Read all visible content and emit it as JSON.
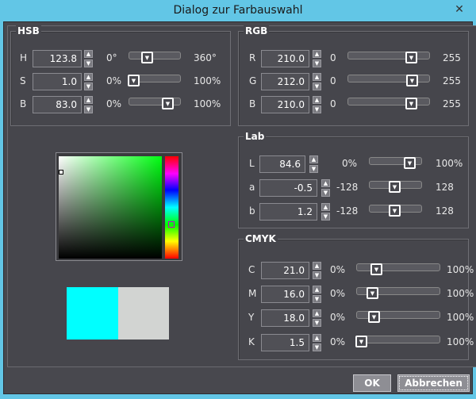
{
  "window": {
    "title": "Dialog zur Farbauswahl",
    "close_icon": "close-icon"
  },
  "hsb": {
    "label": "HSB",
    "rows": [
      {
        "name": "H",
        "value": "123.8",
        "min": "0°",
        "max": "360°",
        "level": 0.344
      },
      {
        "name": "S",
        "value": "1.0",
        "min": "0%",
        "max": "100%",
        "level": 0.01
      },
      {
        "name": "B",
        "value": "83.0",
        "min": "0%",
        "max": "100%",
        "level": 0.83
      }
    ]
  },
  "rgb": {
    "label": "RGB",
    "rows": [
      {
        "name": "R",
        "value": "210.0",
        "min": "0",
        "max": "255",
        "level": 0.82
      },
      {
        "name": "G",
        "value": "212.0",
        "min": "0",
        "max": "255",
        "level": 0.83
      },
      {
        "name": "B",
        "value": "210.0",
        "min": "0",
        "max": "255",
        "level": 0.82
      }
    ]
  },
  "lab": {
    "label": "Lab",
    "rows": [
      {
        "name": "L",
        "value": "84.6",
        "min": "0%",
        "max": "100%",
        "level": 0.846
      },
      {
        "name": "a",
        "value": "-0.5",
        "min": "-128",
        "max": "128",
        "level": 0.5
      },
      {
        "name": "b",
        "value": "1.2",
        "min": "-128",
        "max": "128",
        "level": 0.5
      }
    ]
  },
  "cmyk": {
    "label": "CMYK",
    "rows": [
      {
        "name": "C",
        "value": "21.0",
        "min": "0%",
        "max": "100%",
        "level": 0.21
      },
      {
        "name": "M",
        "value": "16.0",
        "min": "0%",
        "max": "100%",
        "level": 0.16
      },
      {
        "name": "Y",
        "value": "18.0",
        "min": "0%",
        "max": "100%",
        "level": 0.18
      },
      {
        "name": "K",
        "value": "1.5",
        "min": "0%",
        "max": "100%",
        "level": 0.015
      }
    ]
  },
  "picker": {
    "hue_color": "#00ff12"
  },
  "swatches": {
    "new_color": "#00ffff",
    "old_color": "#d2d4d2"
  },
  "buttons": {
    "ok": "OK",
    "cancel": "Abbrechen"
  }
}
